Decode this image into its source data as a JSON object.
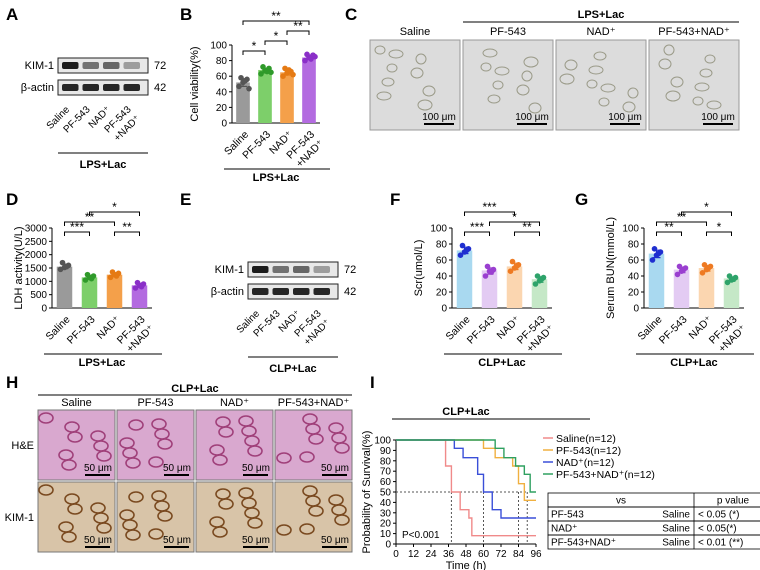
{
  "panel_letters": [
    "A",
    "B",
    "C",
    "D",
    "E",
    "F",
    "G",
    "H",
    "I"
  ],
  "colors": {
    "saline": "#9a9a9a",
    "pf543": "#7dcf6a",
    "nad": "#f4a04a",
    "combo": "#b36be0",
    "saline_dark": "#555555",
    "pf543_dark": "#2f9a2a",
    "nad_dark": "#e57a14",
    "combo_dark": "#8a2fc8",
    "saline_blue_bar": "#a9d9f0",
    "saline_blue_dot": "#1f2fd0",
    "pf_lav_bar": "#e3cbf3",
    "pf_lav_dot": "#9a3fd0",
    "nad_org_bar": "#fbd6b0",
    "nad_org_dot": "#ee7a22",
    "combo_grn_bar": "#c5e8c7",
    "combo_grn_dot": "#2ea36a",
    "km_saline": "#f08a8a",
    "km_pf543": "#f0b040",
    "km_nad": "#3a4fd8",
    "km_combo": "#2fa060",
    "he_bg": "#d9a8cf",
    "ihc_bg": "#d8c4a8",
    "cell_bg": "#dcdcdc"
  },
  "group_labels": [
    "Saline",
    "PF-543",
    "NAD⁺",
    "PF-543\n+NAD⁺"
  ],
  "panelA": {
    "protein1": "KIM-1",
    "kda1": "72",
    "protein2": "β-actin",
    "kda2": "42",
    "condition": "LPS+Lac",
    "lanes": [
      "Saline",
      "PF-543",
      "NAD⁺",
      "PF-543\n+NAD⁺"
    ]
  },
  "panelE": {
    "protein1": "KIM-1",
    "kda1": "72",
    "protein2": "β-actin",
    "kda2": "42",
    "condition": "CLP+Lac",
    "lanes": [
      "Saline",
      "PF-543",
      "NAD⁺",
      "PF-543\n+NAD⁺"
    ]
  },
  "panelC": {
    "condition": "LPS+Lac",
    "groups": [
      "Saline",
      "PF-543",
      "NAD⁺",
      "PF-543+NAD⁺"
    ],
    "scale": "100 μm"
  },
  "panelH": {
    "condition": "CLP+Lac",
    "groups": [
      "Saline",
      "PF-543",
      "NAD⁺",
      "PF-543+NAD⁺"
    ],
    "rows": [
      "H&E",
      "KIM-1"
    ],
    "scale": "50 μm"
  },
  "chart_data": [
    {
      "panel": "B",
      "type": "bar",
      "ylabel": "Cell viability(%)",
      "ylim": [
        0,
        100
      ],
      "yticks": [
        0,
        20,
        40,
        60,
        80,
        100
      ],
      "categories": [
        "Saline",
        "PF-543",
        "NAD⁺",
        "PF-543\n+NAD⁺"
      ],
      "values": [
        52,
        68,
        65,
        84
      ],
      "points": [
        [
          47,
          52,
          56,
          58,
          54,
          44
        ],
        [
          63,
          67,
          70,
          72,
          66,
          65
        ],
        [
          60,
          64,
          66,
          70,
          68,
          62
        ],
        [
          80,
          84,
          87,
          88,
          82,
          85
        ]
      ],
      "condition": "LPS+Lac",
      "significance": [
        {
          "from": 0,
          "to": 1,
          "label": "*",
          "level": 1
        },
        {
          "from": 1,
          "to": 2,
          "label": "*",
          "level": 2
        },
        {
          "from": 2,
          "to": 3,
          "label": "**",
          "level": 3
        },
        {
          "from": 0,
          "to": 3,
          "label": "**",
          "level": 4
        }
      ]
    },
    {
      "panel": "D",
      "type": "bar",
      "ylabel": "LDH activity(U/L)",
      "ylim": [
        0,
        3000
      ],
      "yticks": [
        0,
        500,
        1000,
        1500,
        2000,
        2500,
        3000
      ],
      "categories": [
        "Saline",
        "PF-543",
        "NAD⁺",
        "PF-543\n+NAD⁺"
      ],
      "values": [
        1550,
        1150,
        1250,
        850
      ],
      "points": [
        [
          1450,
          1520,
          1600,
          1700,
          1550
        ],
        [
          1050,
          1150,
          1200,
          1250,
          1100
        ],
        [
          1150,
          1250,
          1300,
          1350,
          1200
        ],
        [
          750,
          850,
          900,
          950,
          800
        ]
      ],
      "condition": "LPS+Lac",
      "significance": [
        {
          "from": 0,
          "to": 1,
          "label": "***",
          "level": 1
        },
        {
          "from": 0,
          "to": 2,
          "label": "**",
          "level": 2
        },
        {
          "from": 2,
          "to": 3,
          "label": "**",
          "level": 1
        },
        {
          "from": 1,
          "to": 3,
          "label": "*",
          "level": 3
        }
      ]
    },
    {
      "panel": "F",
      "type": "bar",
      "ylabel": "Scr(umol/L)",
      "ylim": [
        0,
        100
      ],
      "yticks": [
        0,
        20,
        40,
        60,
        80,
        100
      ],
      "categories": [
        "Saline",
        "PF-543",
        "NAD⁺",
        "PF-543\n+NAD⁺"
      ],
      "values": [
        72,
        47,
        52,
        36
      ],
      "points": [
        [
          66,
          70,
          74,
          78,
          72
        ],
        [
          40,
          46,
          48,
          52,
          45
        ],
        [
          46,
          50,
          54,
          58,
          52
        ],
        [
          30,
          34,
          38,
          40,
          36
        ]
      ],
      "condition": "CLP+Lac",
      "significance": [
        {
          "from": 0,
          "to": 1,
          "label": "***",
          "level": 1
        },
        {
          "from": 2,
          "to": 3,
          "label": "**",
          "level": 1
        },
        {
          "from": 1,
          "to": 3,
          "label": "*",
          "level": 2
        },
        {
          "from": 0,
          "to": 2,
          "label": "***",
          "level": 3
        }
      ]
    },
    {
      "panel": "G",
      "type": "bar",
      "ylabel": "Serum BUN(mmol/L)",
      "ylim": [
        0,
        100
      ],
      "yticks": [
        0,
        20,
        40,
        60,
        80,
        100
      ],
      "categories": [
        "Saline",
        "PF-543",
        "NAD⁺",
        "PF-543\n+NAD⁺"
      ],
      "values": [
        68,
        48,
        50,
        37
      ],
      "points": [
        [
          60,
          66,
          70,
          74,
          68
        ],
        [
          42,
          46,
          50,
          52,
          48
        ],
        [
          44,
          48,
          52,
          54,
          50
        ],
        [
          32,
          35,
          38,
          40,
          36
        ]
      ],
      "condition": "CLP+Lac",
      "significance": [
        {
          "from": 0,
          "to": 1,
          "label": "**",
          "level": 1
        },
        {
          "from": 2,
          "to": 3,
          "label": "*",
          "level": 1
        },
        {
          "from": 0,
          "to": 2,
          "label": "**",
          "level": 2
        },
        {
          "from": 1,
          "to": 3,
          "label": "*",
          "level": 3
        }
      ]
    },
    {
      "panel": "I",
      "type": "line",
      "title": "CLP+Lac",
      "xlabel": "Time (h)",
      "ylabel": "Probability of Survival(%)",
      "xlim": [
        0,
        96
      ],
      "ylim": [
        0,
        100
      ],
      "xticks": [
        0,
        12,
        24,
        36,
        48,
        60,
        72,
        84,
        96
      ],
      "yticks": [
        0,
        10,
        20,
        30,
        40,
        50,
        60,
        70,
        80,
        90,
        100
      ],
      "pvalue_text": "P<0.001",
      "series": [
        {
          "name": "Saline(n=12)",
          "x": [
            0,
            30,
            34,
            38,
            44,
            50,
            52,
            96
          ],
          "y": [
            100,
            100,
            75,
            50,
            33,
            25,
            8,
            8
          ]
        },
        {
          "name": "PF-543(n=12)",
          "x": [
            0,
            54,
            60,
            68,
            80,
            84,
            88,
            96
          ],
          "y": [
            100,
            100,
            92,
            83,
            75,
            58,
            42,
            42
          ]
        },
        {
          "name": "NAD⁺(n=12)",
          "x": [
            0,
            36,
            40,
            46,
            56,
            60,
            66,
            72,
            96
          ],
          "y": [
            100,
            100,
            92,
            83,
            67,
            50,
            33,
            25,
            25
          ]
        },
        {
          "name": "PF-543+NAD⁺(n=12)",
          "x": [
            0,
            60,
            68,
            74,
            82,
            88,
            92,
            96
          ],
          "y": [
            100,
            100,
            92,
            83,
            75,
            67,
            50,
            50
          ]
        }
      ],
      "table": {
        "headers": [
          "vs",
          "",
          "p value"
        ],
        "rows": [
          [
            "PF-543",
            "Saline",
            "< 0.05 (*)"
          ],
          [
            "NAD⁺",
            "Saline",
            "< 0.05(*)"
          ],
          [
            "PF-543+NAD⁺",
            "Saline",
            "< 0.01 (**)"
          ]
        ]
      }
    }
  ]
}
